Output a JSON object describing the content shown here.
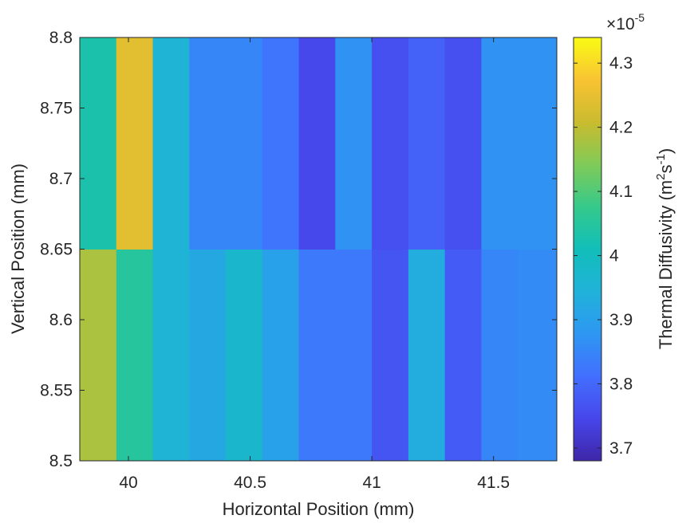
{
  "chart_data": {
    "type": "heatmap",
    "title": "",
    "xlabel": "Horizontal Position (mm)",
    "ylabel": "Vertical Position (mm)",
    "xlim": [
      39.8,
      41.76
    ],
    "ylim": [
      8.5,
      8.8
    ],
    "x_edges": [
      39.8,
      39.95,
      40.1,
      40.25,
      40.4,
      40.55,
      40.7,
      40.85,
      41.0,
      41.15,
      41.3,
      41.45,
      41.6,
      41.76
    ],
    "y_edges": [
      8.5,
      8.65,
      8.8
    ],
    "x_ticks": [
      {
        "value": 40,
        "label": "40"
      },
      {
        "value": 40.5,
        "label": "40.5"
      },
      {
        "value": 41,
        "label": "41"
      },
      {
        "value": 41.5,
        "label": "41.5"
      }
    ],
    "y_ticks": [
      {
        "value": 8.5,
        "label": "8.5"
      },
      {
        "value": 8.55,
        "label": "8.55"
      },
      {
        "value": 8.6,
        "label": "8.6"
      },
      {
        "value": 8.65,
        "label": "8.65"
      },
      {
        "value": 8.7,
        "label": "8.7"
      },
      {
        "value": 8.75,
        "label": "8.75"
      },
      {
        "value": 8.8,
        "label": "8.8"
      }
    ],
    "values_e5": [
      [
        4.18,
        4.05,
        3.95,
        3.92,
        3.97,
        3.9,
        3.83,
        3.83,
        3.77,
        3.93,
        3.78,
        3.85,
        3.86
      ],
      [
        4.03,
        4.24,
        3.95,
        3.85,
        3.85,
        3.82,
        3.75,
        3.87,
        3.76,
        3.79,
        3.76,
        3.87,
        3.87
      ]
    ],
    "value_scale": 1e-05,
    "colorbar": {
      "label_main": "Thermal Diffusivity (m",
      "label_sup1": "2",
      "label_mid": "s",
      "label_sup2": "-1",
      "label_end": ")",
      "multiplier_base": "×10",
      "multiplier_exp": "-5",
      "range_e5": [
        3.68,
        4.34
      ],
      "ticks": [
        {
          "value": 3.7,
          "label": "3.7"
        },
        {
          "value": 3.8,
          "label": "3.8"
        },
        {
          "value": 3.9,
          "label": "3.9"
        },
        {
          "value": 4.0,
          "label": "4"
        },
        {
          "value": 4.1,
          "label": "4.1"
        },
        {
          "value": 4.2,
          "label": "4.2"
        },
        {
          "value": 4.3,
          "label": "4.3"
        }
      ]
    },
    "colormap": "parula",
    "grid": false
  }
}
